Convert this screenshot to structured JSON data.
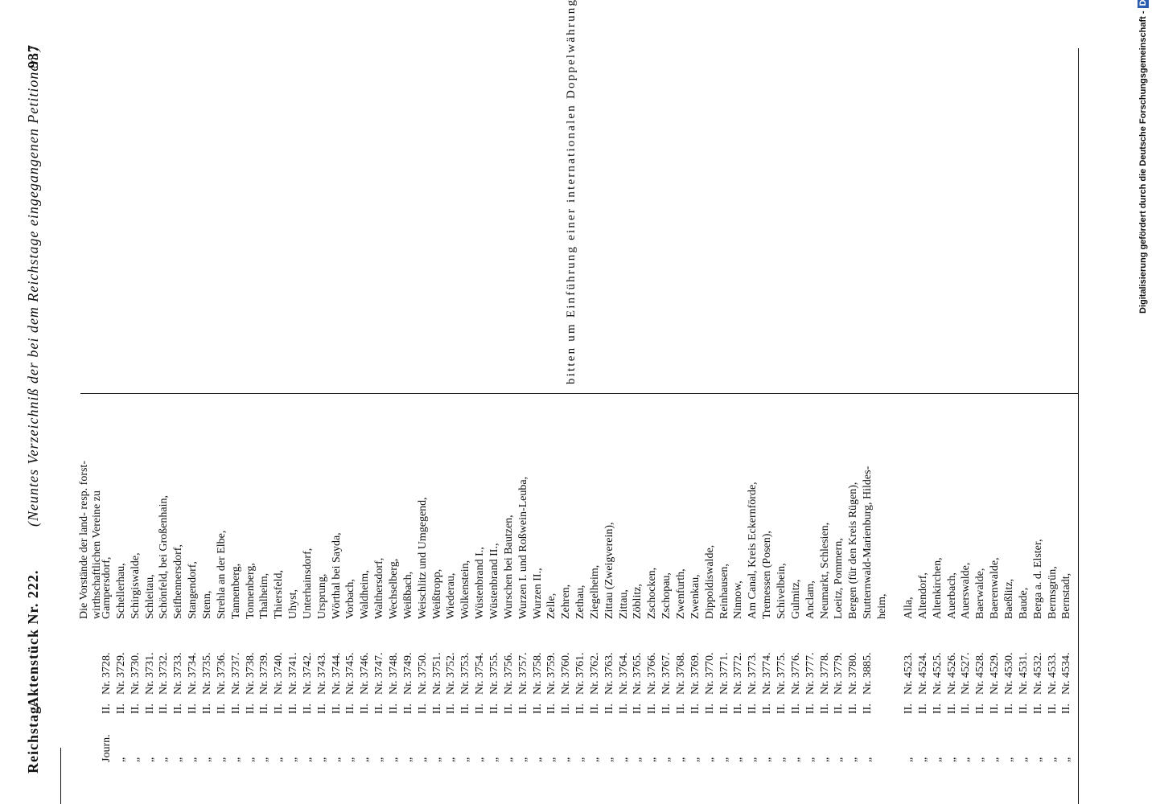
{
  "header": {
    "left": "Reichstag.",
    "title": "Aktenstück Nr. 222.",
    "subtitle": "(Neuntes Verzeichniß der bei dem Reichstage eingegangenen Petitionen.)",
    "page": "937"
  },
  "intro": [
    "Die Vorstände der land- resp. forst-",
    "wirthschaftlichen Vereine zu"
  ],
  "groups": [
    {
      "rows": [
        {
          "ditto": "Journ.",
          "roman": "II.",
          "nr": "Nr. 3728.",
          "name": "Gampersdorf,"
        },
        {
          "ditto": "„",
          "roman": "II.",
          "nr": "Nr. 3729.",
          "name": "Schellerhau,"
        },
        {
          "ditto": "„",
          "roman": "II.",
          "nr": "Nr. 3730.",
          "name": "Schirgiswalde,"
        },
        {
          "ditto": "„",
          "roman": "II.",
          "nr": "Nr. 3731.",
          "name": "Schleitau,"
        },
        {
          "ditto": "„",
          "roman": "II.",
          "nr": "Nr. 3732.",
          "name": "Schönfeld, bei Großenhain,"
        },
        {
          "ditto": "„",
          "roman": "II.",
          "nr": "Nr. 3733.",
          "name": "Seifhennersdorf,"
        },
        {
          "ditto": "„",
          "roman": "II.",
          "nr": "Nr. 3734.",
          "name": "Stangendorf,"
        },
        {
          "ditto": "„",
          "roman": "II.",
          "nr": "Nr. 3735.",
          "name": "Stenn,"
        },
        {
          "ditto": "„",
          "roman": "II.",
          "nr": "Nr. 3736.",
          "name": "Strehla an der Elbe,"
        },
        {
          "ditto": "„",
          "roman": "II.",
          "nr": "Nr. 3737.",
          "name": "Tannenberg,"
        },
        {
          "ditto": "„",
          "roman": "II.",
          "nr": "Nr. 3738.",
          "name": "Tonnenberg,"
        },
        {
          "ditto": "„",
          "roman": "II.",
          "nr": "Nr. 3739.",
          "name": "Thalheim,"
        },
        {
          "ditto": "„",
          "roman": "II.",
          "nr": "Nr. 3740.",
          "name": "Thiersfeld,"
        },
        {
          "ditto": "„",
          "roman": "II.",
          "nr": "Nr. 3741.",
          "name": "Uhyst,"
        },
        {
          "ditto": "„",
          "roman": "II.",
          "nr": "Nr. 3742.",
          "name": "Unterhainsdorf,"
        },
        {
          "ditto": "„",
          "roman": "II.",
          "nr": "Nr. 3743.",
          "name": "Ursprung,"
        },
        {
          "ditto": "„",
          "roman": "II.",
          "nr": "Nr. 3744.",
          "name": "Wörthal bei Sayda,"
        },
        {
          "ditto": "„",
          "roman": "II.",
          "nr": "Nr. 3745.",
          "name": "Vorbach,"
        },
        {
          "ditto": "„",
          "roman": "II.",
          "nr": "Nr. 3746.",
          "name": "Waldheim,"
        },
        {
          "ditto": "„",
          "roman": "II.",
          "nr": "Nr. 3747.",
          "name": "Walthersdorf,"
        },
        {
          "ditto": "„",
          "roman": "II.",
          "nr": "Nr. 3748.",
          "name": "Wechselberg,"
        },
        {
          "ditto": "„",
          "roman": "II.",
          "nr": "Nr. 3749.",
          "name": "Weißbach,"
        },
        {
          "ditto": "„",
          "roman": "II.",
          "nr": "Nr. 3750.",
          "name": "Weischlitz und Umgegend,"
        },
        {
          "ditto": "„",
          "roman": "II.",
          "nr": "Nr. 3751.",
          "name": "Weißtropp,"
        },
        {
          "ditto": "„",
          "roman": "II.",
          "nr": "Nr. 3752.",
          "name": "Wiederau,"
        },
        {
          "ditto": "„",
          "roman": "II.",
          "nr": "Nr. 3753.",
          "name": "Wolkenstein,"
        },
        {
          "ditto": "„",
          "roman": "II.",
          "nr": "Nr. 3754.",
          "name": "Wüstenbrand I.,"
        },
        {
          "ditto": "„",
          "roman": "II.",
          "nr": "Nr. 3755.",
          "name": "Wüstenbrand II.,"
        },
        {
          "ditto": "„",
          "roman": "II.",
          "nr": "Nr. 3756.",
          "name": "Wurschen bei Bautzen,"
        },
        {
          "ditto": "„",
          "roman": "II.",
          "nr": "Nr. 3757.",
          "name": "Wurzen I. und Roßwein-Leuba,"
        },
        {
          "ditto": "„",
          "roman": "II.",
          "nr": "Nr. 3758.",
          "name": "Wurzen II.,"
        },
        {
          "ditto": "„",
          "roman": "II.",
          "nr": "Nr. 3759.",
          "name": "Zelle,"
        },
        {
          "ditto": "„",
          "roman": "II.",
          "nr": "Nr. 3760.",
          "name": "Zehren,"
        },
        {
          "ditto": "„",
          "roman": "II.",
          "nr": "Nr. 3761.",
          "name": "Zethau,"
        },
        {
          "ditto": "„",
          "roman": "II.",
          "nr": "Nr. 3762.",
          "name": "Ziegelheim,"
        },
        {
          "ditto": "„",
          "roman": "II.",
          "nr": "Nr. 3763.",
          "name": "Zittau (Zweigverein),"
        },
        {
          "ditto": "„",
          "roman": "II.",
          "nr": "Nr. 3764.",
          "name": "Zittau,"
        },
        {
          "ditto": "„",
          "roman": "II.",
          "nr": "Nr. 3765.",
          "name": "Zöblitz,"
        },
        {
          "ditto": "„",
          "roman": "II.",
          "nr": "Nr. 3766.",
          "name": "Zschocken,"
        },
        {
          "ditto": "„",
          "roman": "II.",
          "nr": "Nr. 3767.",
          "name": "Zschopau,"
        },
        {
          "ditto": "„",
          "roman": "II.",
          "nr": "Nr. 3768.",
          "name": "Zwenfurth,"
        },
        {
          "ditto": "„",
          "roman": "II.",
          "nr": "Nr. 3769.",
          "name": "Zwenkau,"
        },
        {
          "ditto": "„",
          "roman": "II.",
          "nr": "Nr. 3770.",
          "name": "Dippoldiswalde,"
        },
        {
          "ditto": "„",
          "roman": "II.",
          "nr": "Nr. 3771.",
          "name": "Reinhausen,"
        },
        {
          "ditto": "„",
          "roman": "II.",
          "nr": "Nr. 3772.",
          "name": "Ninnow,"
        },
        {
          "ditto": "„",
          "roman": "II.",
          "nr": "Nr. 3773.",
          "name": "Am Canal, Kreis Eckernförde,"
        },
        {
          "ditto": "„",
          "roman": "II.",
          "nr": "Nr. 3774.",
          "name": "Tremessen (Posen),"
        },
        {
          "ditto": "„",
          "roman": "II.",
          "nr": "Nr. 3775.",
          "name": "Schivelbein,"
        },
        {
          "ditto": "„",
          "roman": "II.",
          "nr": "Nr. 3776.",
          "name": "Gulmitz,"
        },
        {
          "ditto": "„",
          "roman": "II.",
          "nr": "Nr. 3777.",
          "name": "Anclam,"
        },
        {
          "ditto": "„",
          "roman": "II.",
          "nr": "Nr. 3778.",
          "name": "Neumarkt, Schlesien,"
        },
        {
          "ditto": "„",
          "roman": "II.",
          "nr": "Nr. 3779.",
          "name": "Loeitz, Pommern,"
        },
        {
          "ditto": "„",
          "roman": "II.",
          "nr": "Nr. 3780.",
          "name": "Bergen (für den Kreis Rügen),"
        },
        {
          "ditto": "„",
          "roman": "II.",
          "nr": "Nr. 3885.",
          "name": "Stutternwald-Marienburg, Hildes-",
          "name2": "heim,"
        }
      ]
    },
    {
      "rows": [
        {
          "ditto": "„",
          "roman": "II.",
          "nr": "Nr. 4523.",
          "name": "Alla,"
        },
        {
          "ditto": "„",
          "roman": "II.",
          "nr": "Nr. 4524.",
          "name": "Altendorf,"
        },
        {
          "ditto": "„",
          "roman": "II.",
          "nr": "Nr. 4525.",
          "name": "Altenkirchen,"
        },
        {
          "ditto": "„",
          "roman": "II.",
          "nr": "Nr. 4526.",
          "name": "Auerbach,"
        },
        {
          "ditto": "„",
          "roman": "II.",
          "nr": "Nr. 4527.",
          "name": "Auerswalde,"
        },
        {
          "ditto": "„",
          "roman": "II.",
          "nr": "Nr. 4528.",
          "name": "Baerwalde,"
        },
        {
          "ditto": "„",
          "roman": "II.",
          "nr": "Nr. 4529.",
          "name": "Baerenwalde,"
        },
        {
          "ditto": "„",
          "roman": "II.",
          "nr": "Nr. 4530.",
          "name": "Baeßlitz,"
        },
        {
          "ditto": "„",
          "roman": "II.",
          "nr": "Nr. 4531.",
          "name": "Baude,"
        },
        {
          "ditto": "„",
          "roman": "II.",
          "nr": "Nr. 4532.",
          "name": "Berga a. d. Elster,"
        },
        {
          "ditto": "„",
          "roman": "II.",
          "nr": "Nr. 4533.",
          "name": "Bermsgrün,"
        },
        {
          "ditto": "„",
          "roman": "II.",
          "nr": "Nr. 4534.",
          "name": "Bernstadt,"
        }
      ]
    }
  ],
  "request": "bitten um Einführung einer internationalen Doppelwährung.",
  "funding": "Digitalisierung gefördert durch die Deutsche Forschungsgemeinschaft -",
  "logo": "DFG"
}
